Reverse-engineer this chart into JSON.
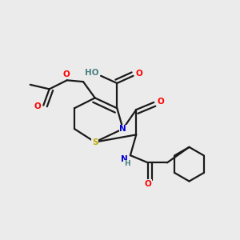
{
  "bg_color": "#ebebeb",
  "bond_color": "#1a1a1a",
  "atom_colors": {
    "O": "#ff0000",
    "N": "#0000cc",
    "S": "#bbaa00",
    "H_color": "#4a8080",
    "C": "#1a1a1a"
  },
  "figsize": [
    3.0,
    3.0
  ],
  "dpi": 100
}
